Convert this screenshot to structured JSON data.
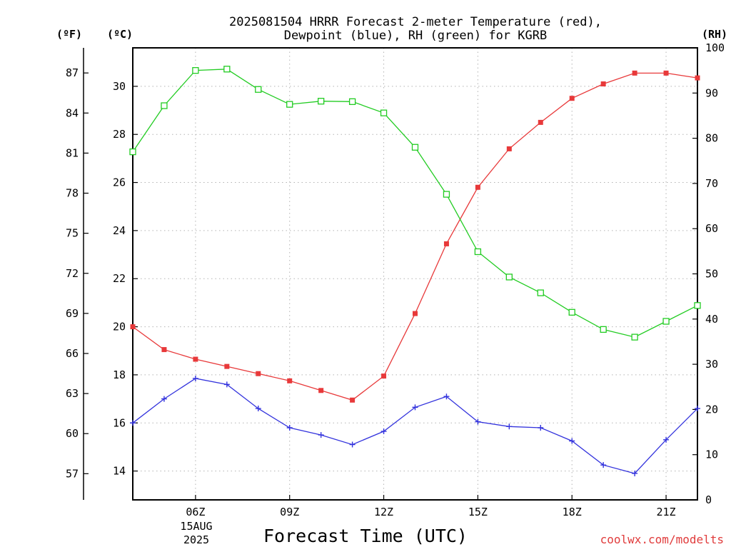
{
  "chart_data": {
    "type": "line",
    "title_lines": [
      "2025081504 HRRR Forecast 2-meter Temperature (red),",
      "Dewpoint (blue), RH (green) for KGRB"
    ],
    "xlabel": "Forecast Time (UTC)",
    "x": [
      "04Z",
      "05Z",
      "06Z",
      "07Z",
      "08Z",
      "09Z",
      "10Z",
      "11Z",
      "12Z",
      "13Z",
      "14Z",
      "15Z",
      "16Z",
      "17Z",
      "18Z",
      "19Z",
      "20Z",
      "21Z",
      "22Z"
    ],
    "x_tick_labels": [
      "06Z",
      "09Z",
      "12Z",
      "15Z",
      "18Z",
      "21Z"
    ],
    "x_date_label": [
      "15AUG",
      "2025"
    ],
    "y_left_celsius": {
      "unit": "(ºC)",
      "ylim": [
        12.8,
        31.6
      ],
      "ticks": [
        14,
        16,
        18,
        20,
        22,
        24,
        26,
        28,
        30
      ]
    },
    "y_left_fahrenheit": {
      "unit": "(ºF)",
      "ticks": [
        57,
        60,
        63,
        66,
        69,
        72,
        75,
        78,
        81,
        84,
        87
      ]
    },
    "y_right_rh": {
      "unit": "(RH)",
      "ylim": [
        0,
        100
      ],
      "ticks": [
        0,
        10,
        20,
        30,
        40,
        50,
        60,
        70,
        80,
        90,
        100
      ]
    },
    "series": [
      {
        "name": "Temperature",
        "color": "#e8393a",
        "axis": "celsius",
        "marker": "filled-square",
        "values": [
          20.0,
          19.05,
          18.65,
          18.35,
          18.05,
          17.75,
          17.35,
          16.95,
          17.95,
          20.55,
          23.45,
          25.8,
          27.4,
          28.5,
          29.5,
          30.1,
          30.55,
          30.55,
          30.35
        ]
      },
      {
        "name": "Dewpoint",
        "color": "#3333dd",
        "axis": "celsius",
        "marker": "plus",
        "values": [
          16.0,
          17.0,
          17.85,
          17.6,
          16.6,
          15.8,
          15.5,
          15.1,
          15.65,
          16.65,
          17.1,
          16.05,
          15.85,
          15.8,
          15.25,
          14.25,
          13.9,
          15.3,
          16.6
        ]
      },
      {
        "name": "RH",
        "color": "#22cc22",
        "axis": "rh",
        "marker": "open-square",
        "values": [
          77.0,
          87.2,
          95.0,
          95.3,
          90.8,
          87.5,
          88.2,
          88.1,
          85.6,
          78.0,
          67.6,
          54.9,
          49.3,
          45.8,
          41.5,
          37.7,
          36.0,
          39.5,
          43.0
        ]
      }
    ],
    "grid": true,
    "credit": "coolwx.com/modelts"
  }
}
